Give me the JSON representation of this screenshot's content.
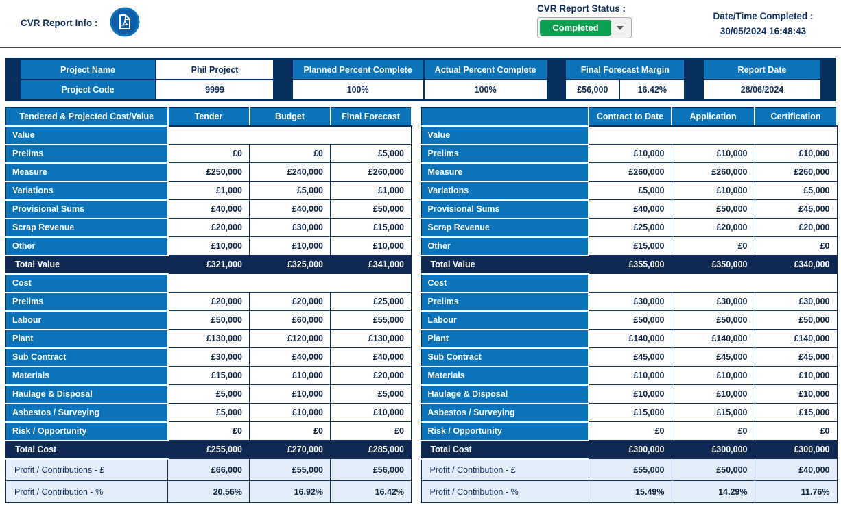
{
  "header": {
    "report_info_label": "CVR Report Info :",
    "status_label": "CVR Report Status :",
    "status_value": "Completed",
    "datetime_label": "Date/Time Completed :",
    "datetime_value": "30/05/2024 16:48:43"
  },
  "summary": {
    "project_name_label": "Project Name",
    "project_name": "Phil Project",
    "project_code_label": "Project Code",
    "project_code": "9999",
    "planned_label": "Planned Percent Complete",
    "planned_value": "100%",
    "actual_label": "Actual Percent Complete",
    "actual_value": "100%",
    "margin_label": "Final Forecast Margin",
    "margin_amount": "£56,000",
    "margin_percent": "16.42%",
    "report_date_label": "Report Date",
    "report_date": "28/06/2024"
  },
  "icons": {
    "pdf_icon": "pdf-document-icon",
    "dropdown_caret": "chevron-down-icon"
  },
  "colors": {
    "accent_blue": "#0a73ba",
    "band_navy": "#07305f",
    "total_navy": "#0e2a52",
    "profit_light_blue": "#e3eefa",
    "status_green": "#0aa04f",
    "text_navy": "#0d2d5e"
  },
  "left_table": {
    "headers": [
      "Tendered & Projected Cost/Value",
      "Tender",
      "Budget",
      "Final Forecast"
    ],
    "rows": [
      {
        "type": "section",
        "label": "Value"
      },
      {
        "type": "data",
        "label": "Prelims",
        "values": [
          "£0",
          "£0",
          "£5,000"
        ]
      },
      {
        "type": "data",
        "label": "Measure",
        "values": [
          "£250,000",
          "£240,000",
          "£260,000"
        ]
      },
      {
        "type": "data",
        "label": "Variations",
        "values": [
          "£1,000",
          "£5,000",
          "£1,000"
        ]
      },
      {
        "type": "data",
        "label": "Provisional Sums",
        "values": [
          "£40,000",
          "£40,000",
          "£50,000"
        ]
      },
      {
        "type": "data",
        "label": "Scrap Revenue",
        "values": [
          "£20,000",
          "£30,000",
          "£15,000"
        ]
      },
      {
        "type": "data",
        "label": "Other",
        "values": [
          "£10,000",
          "£10,000",
          "£10,000"
        ]
      },
      {
        "type": "total",
        "label": "Total Value",
        "values": [
          "£321,000",
          "£325,000",
          "£341,000"
        ]
      },
      {
        "type": "section",
        "label": "Cost"
      },
      {
        "type": "data",
        "label": "Prelims",
        "values": [
          "£20,000",
          "£20,000",
          "£25,000"
        ]
      },
      {
        "type": "data",
        "label": "Labour",
        "values": [
          "£50,000",
          "£60,000",
          "£55,000"
        ]
      },
      {
        "type": "data",
        "label": "Plant",
        "values": [
          "£130,000",
          "£120,000",
          "£130,000"
        ]
      },
      {
        "type": "data",
        "label": "Sub Contract",
        "values": [
          "£30,000",
          "£40,000",
          "£40,000"
        ]
      },
      {
        "type": "data",
        "label": "Materials",
        "values": [
          "£15,000",
          "£10,000",
          "£20,000"
        ]
      },
      {
        "type": "data",
        "label": "Haulage & Disposal",
        "values": [
          "£5,000",
          "£10,000",
          "£5,000"
        ]
      },
      {
        "type": "data",
        "label": "Asbestos / Surveying",
        "values": [
          "£5,000",
          "£10,000",
          "£10,000"
        ]
      },
      {
        "type": "data",
        "label": "Risk / Opportunity",
        "values": [
          "£0",
          "£0",
          "£0"
        ]
      },
      {
        "type": "total",
        "label": "Total Cost",
        "values": [
          "£255,000",
          "£270,000",
          "£285,000"
        ]
      },
      {
        "type": "profit",
        "label": "Profit / Contributions - £",
        "values": [
          "£66,000",
          "£55,000",
          "£56,000"
        ]
      },
      {
        "type": "profit",
        "label": "Profit / Contribution - %",
        "values": [
          "20.56%",
          "16.92%",
          "16.42%"
        ]
      }
    ]
  },
  "right_table": {
    "headers": [
      "",
      "Contract to Date",
      "Application",
      "Certification"
    ],
    "rows": [
      {
        "type": "section",
        "label": "Value"
      },
      {
        "type": "data",
        "label": "Prelims",
        "values": [
          "£10,000",
          "£10,000",
          "£10,000"
        ]
      },
      {
        "type": "data",
        "label": "Measure",
        "values": [
          "£260,000",
          "£260,000",
          "£260,000"
        ]
      },
      {
        "type": "data",
        "label": "Variations",
        "values": [
          "£5,000",
          "£10,000",
          "£5,000"
        ]
      },
      {
        "type": "data",
        "label": "Provisional Sums",
        "values": [
          "£40,000",
          "£50,000",
          "£45,000"
        ]
      },
      {
        "type": "data",
        "label": "Scrap Revenue",
        "values": [
          "£25,000",
          "£20,000",
          "£20,000"
        ]
      },
      {
        "type": "data",
        "label": "Other",
        "values": [
          "£15,000",
          "£0",
          "£0"
        ]
      },
      {
        "type": "total",
        "label": "Total Value",
        "values": [
          "£355,000",
          "£350,000",
          "£340,000"
        ]
      },
      {
        "type": "section",
        "label": "Cost"
      },
      {
        "type": "data",
        "label": "Prelims",
        "values": [
          "£30,000",
          "£30,000",
          "£30,000"
        ]
      },
      {
        "type": "data",
        "label": "Labour",
        "values": [
          "£50,000",
          "£50,000",
          "£50,000"
        ]
      },
      {
        "type": "data",
        "label": "Plant",
        "values": [
          "£140,000",
          "£140,000",
          "£140,000"
        ]
      },
      {
        "type": "data",
        "label": "Sub Contract",
        "values": [
          "£45,000",
          "£45,000",
          "£45,000"
        ]
      },
      {
        "type": "data",
        "label": "Materials",
        "values": [
          "£10,000",
          "£10,000",
          "£10,000"
        ]
      },
      {
        "type": "data",
        "label": "Haulage & Disposal",
        "values": [
          "£10,000",
          "£10,000",
          "£10,000"
        ]
      },
      {
        "type": "data",
        "label": "Asbestos / Surveying",
        "values": [
          "£15,000",
          "£15,000",
          "£15,000"
        ]
      },
      {
        "type": "data",
        "label": "Risk / Opportunity",
        "values": [
          "£0",
          "£0",
          "£0"
        ]
      },
      {
        "type": "total",
        "label": "Total Cost",
        "values": [
          "£300,000",
          "£300,000",
          "£300,000"
        ]
      },
      {
        "type": "profit",
        "label": "Profit / Contribution - £",
        "values": [
          "£55,000",
          "£50,000",
          "£40,000"
        ]
      },
      {
        "type": "profit",
        "label": "Profit / Contribution - %",
        "values": [
          "15.49%",
          "14.29%",
          "11.76%"
        ]
      }
    ]
  }
}
